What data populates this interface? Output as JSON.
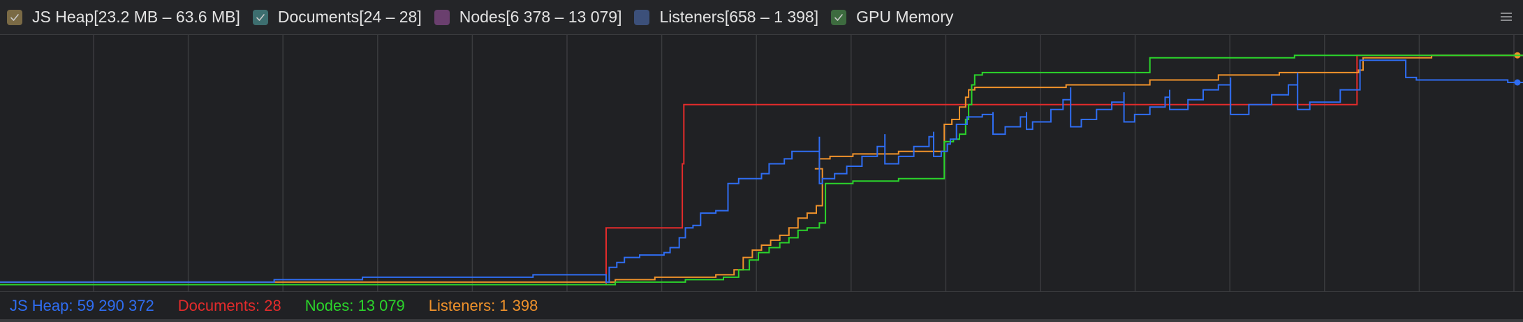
{
  "legend": [
    {
      "id": "js-heap",
      "label": "JS Heap[23.2 MB – 63.6 MB]",
      "color": "#7a6a45",
      "checked": true
    },
    {
      "id": "documents",
      "label": "Documents[24 – 28]",
      "color": "#3d6e6f",
      "checked": true
    },
    {
      "id": "nodes",
      "label": "Nodes[6 378 – 13 079]",
      "color": "#6a3f6e",
      "checked": false
    },
    {
      "id": "listeners",
      "label": "Listeners[658 – 1 398]",
      "color": "#3c507a",
      "checked": false
    },
    {
      "id": "gpu-memory",
      "label": "GPU Memory",
      "color": "#3d6b3f",
      "checked": true
    }
  ],
  "menu_icon": "hamburger-menu-icon",
  "counters": {
    "js_heap": {
      "label": "JS Heap: 59 290 372",
      "color": "#2f6df2"
    },
    "documents": {
      "label": "Documents: 28",
      "color": "#e32b2b"
    },
    "nodes": {
      "label": "Nodes: 13 079",
      "color": "#2bd42b"
    },
    "listeners": {
      "label": "Listeners: 1 398",
      "color": "#f0922b"
    }
  },
  "chart_data": {
    "type": "line",
    "x_range": [
      0,
      1000
    ],
    "y_range": [
      0,
      100
    ],
    "grid": "vertical",
    "series": [
      {
        "name": "Documents",
        "color": "#e32b2b",
        "step": true,
        "points": [
          [
            0,
            1
          ],
          [
            398,
            1
          ],
          [
            398,
            24
          ],
          [
            448,
            24
          ],
          [
            448,
            50
          ],
          [
            449,
            50
          ],
          [
            449,
            74
          ],
          [
            891,
            74
          ],
          [
            891,
            94
          ],
          [
            1000,
            94
          ]
        ]
      },
      {
        "name": "Listeners",
        "color": "#f0922b",
        "step": true,
        "points": [
          [
            0,
            2
          ],
          [
            398,
            2
          ],
          [
            404,
            3
          ],
          [
            430,
            4
          ],
          [
            470,
            5
          ],
          [
            482,
            7
          ],
          [
            488,
            12
          ],
          [
            494,
            15
          ],
          [
            500,
            17
          ],
          [
            506,
            19
          ],
          [
            512,
            21
          ],
          [
            518,
            24
          ],
          [
            524,
            28
          ],
          [
            530,
            30
          ],
          [
            536,
            33
          ],
          [
            540,
            35
          ],
          [
            540,
            48
          ],
          [
            535,
            48
          ],
          [
            538,
            52
          ],
          [
            545,
            53
          ],
          [
            560,
            54
          ],
          [
            590,
            55
          ],
          [
            620,
            56
          ],
          [
            620,
            66
          ],
          [
            625,
            68
          ],
          [
            630,
            73
          ],
          [
            634,
            77
          ],
          [
            636,
            80
          ],
          [
            640,
            81
          ],
          [
            700,
            82
          ],
          [
            740,
            82
          ],
          [
            755,
            84
          ],
          [
            800,
            86
          ],
          [
            840,
            87
          ],
          [
            892,
            88
          ],
          [
            895,
            93
          ],
          [
            940,
            94
          ],
          [
            1000,
            94
          ]
        ]
      },
      {
        "name": "Nodes",
        "color": "#2bd42b",
        "step": true,
        "points": [
          [
            0,
            1
          ],
          [
            398,
            1
          ],
          [
            404,
            2
          ],
          [
            450,
            3
          ],
          [
            475,
            4
          ],
          [
            485,
            7
          ],
          [
            492,
            11
          ],
          [
            498,
            14
          ],
          [
            505,
            16
          ],
          [
            512,
            18
          ],
          [
            518,
            20
          ],
          [
            524,
            23
          ],
          [
            530,
            24
          ],
          [
            538,
            26
          ],
          [
            542,
            28
          ],
          [
            542,
            42
          ],
          [
            546,
            42
          ],
          [
            560,
            43
          ],
          [
            590,
            44
          ],
          [
            620,
            45
          ],
          [
            620,
            59
          ],
          [
            626,
            60
          ],
          [
            630,
            62
          ],
          [
            634,
            68
          ],
          [
            636,
            74
          ],
          [
            638,
            82
          ],
          [
            640,
            86
          ],
          [
            645,
            87
          ],
          [
            700,
            87
          ],
          [
            745,
            87
          ],
          [
            755,
            93
          ],
          [
            800,
            93
          ],
          [
            850,
            94
          ],
          [
            900,
            94
          ],
          [
            1000,
            94
          ]
        ]
      },
      {
        "name": "JS Heap",
        "color": "#2f6df2",
        "step": true,
        "points": [
          [
            0,
            2
          ],
          [
            180,
            3
          ],
          [
            238,
            4
          ],
          [
            340,
            4
          ],
          [
            350,
            5
          ],
          [
            398,
            2
          ],
          [
            400,
            8
          ],
          [
            405,
            10
          ],
          [
            410,
            12
          ],
          [
            420,
            13
          ],
          [
            436,
            14
          ],
          [
            440,
            16
          ],
          [
            446,
            20
          ],
          [
            450,
            24
          ],
          [
            455,
            25
          ],
          [
            460,
            30
          ],
          [
            470,
            31
          ],
          [
            478,
            42
          ],
          [
            485,
            44
          ],
          [
            500,
            46
          ],
          [
            505,
            50
          ],
          [
            515,
            52
          ],
          [
            520,
            55
          ],
          [
            538,
            61
          ],
          [
            538,
            42
          ],
          [
            540,
            44
          ],
          [
            548,
            46
          ],
          [
            556,
            49
          ],
          [
            566,
            53
          ],
          [
            576,
            57
          ],
          [
            581,
            62
          ],
          [
            581,
            50
          ],
          [
            590,
            53
          ],
          [
            600,
            57
          ],
          [
            610,
            61
          ],
          [
            613,
            63
          ],
          [
            613,
            53
          ],
          [
            618,
            55
          ],
          [
            622,
            58
          ],
          [
            624,
            60
          ],
          [
            628,
            66
          ],
          [
            635,
            69
          ],
          [
            645,
            70
          ],
          [
            652,
            71
          ],
          [
            652,
            62
          ],
          [
            660,
            65
          ],
          [
            670,
            69
          ],
          [
            674,
            71
          ],
          [
            674,
            64
          ],
          [
            678,
            67
          ],
          [
            690,
            72
          ],
          [
            698,
            76
          ],
          [
            703,
            81
          ],
          [
            703,
            65
          ],
          [
            710,
            68
          ],
          [
            720,
            72
          ],
          [
            730,
            75
          ],
          [
            738,
            79
          ],
          [
            738,
            67
          ],
          [
            745,
            70
          ],
          [
            755,
            73
          ],
          [
            765,
            77
          ],
          [
            768,
            80
          ],
          [
            768,
            72
          ],
          [
            780,
            76
          ],
          [
            790,
            80
          ],
          [
            800,
            82
          ],
          [
            808,
            85
          ],
          [
            808,
            70
          ],
          [
            820,
            74
          ],
          [
            835,
            78
          ],
          [
            846,
            82
          ],
          [
            852,
            87
          ],
          [
            852,
            72
          ],
          [
            860,
            75
          ],
          [
            880,
            80
          ],
          [
            893,
            85
          ],
          [
            893,
            92
          ],
          [
            923,
            92
          ],
          [
            923,
            85
          ],
          [
            930,
            84
          ],
          [
            990,
            83
          ],
          [
            1000,
            83
          ]
        ]
      }
    ]
  }
}
